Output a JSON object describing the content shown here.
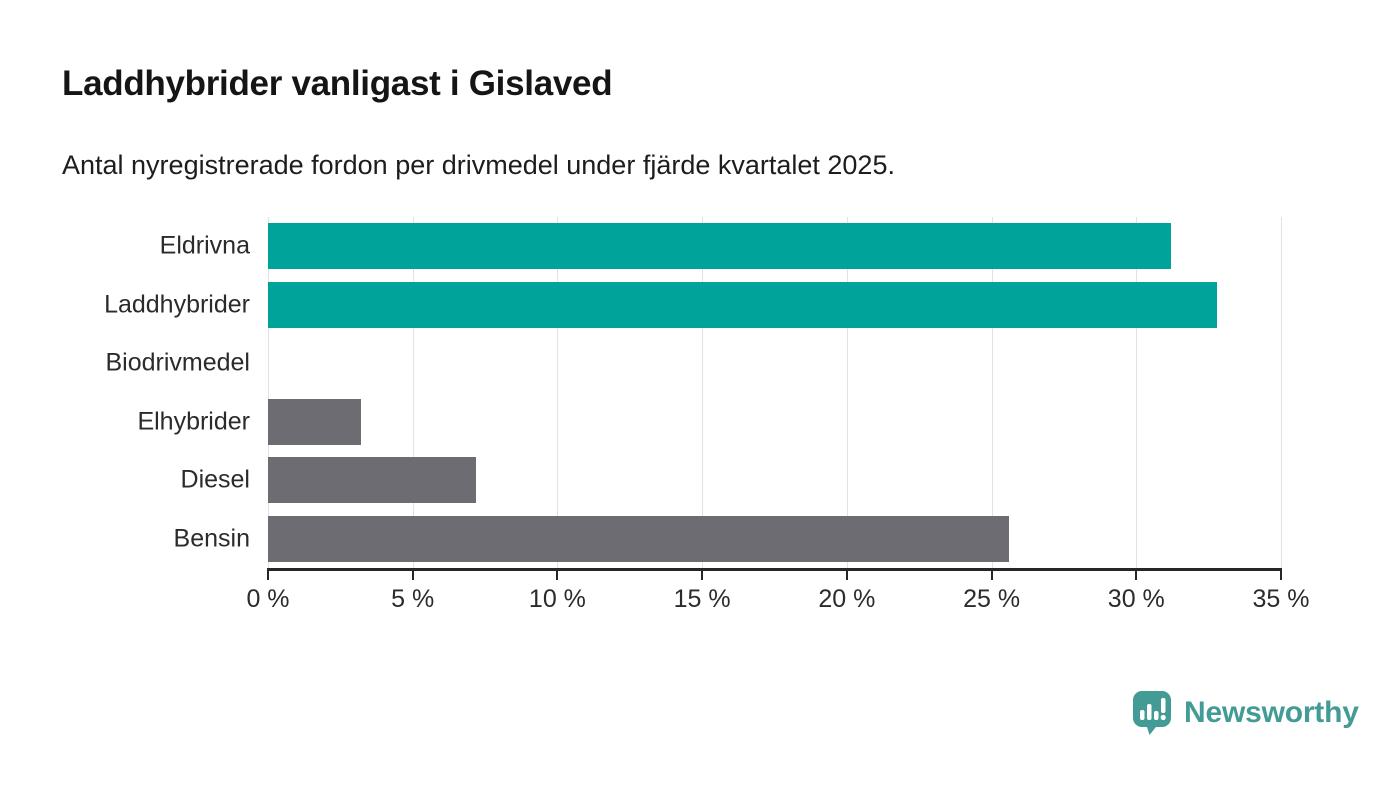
{
  "chart_data": {
    "type": "bar",
    "orientation": "horizontal",
    "title": "Laddhybrider vanligast i Gislaved",
    "subtitle": "Antal nyregistrerade fordon per drivmedel under fjärde kvartalet 2025.",
    "categories": [
      "Eldrivna",
      "Laddhybrider",
      "Biodrivmedel",
      "Elhybrider",
      "Diesel",
      "Bensin"
    ],
    "values": [
      31.2,
      32.8,
      0,
      3.2,
      7.2,
      25.6
    ],
    "unit": "%",
    "xlabel": "",
    "ylabel": "",
    "xlim": [
      0,
      35
    ],
    "xticks": [
      0,
      5,
      10,
      15,
      20,
      25,
      30,
      35
    ],
    "xtick_suffix": " %",
    "grid": true,
    "legend_position": "none",
    "colors": {
      "highlight": "#00A39A",
      "default": "#6C6C72",
      "gridline": "#e2e2e2",
      "axis": "#262626"
    },
    "highlighted_categories": [
      "Eldrivna",
      "Laddhybrider"
    ]
  },
  "logo": {
    "text": "Newsworthy",
    "color": "#429B94",
    "icon": "newsworthy-speech-bubble-bar-chart-icon"
  }
}
